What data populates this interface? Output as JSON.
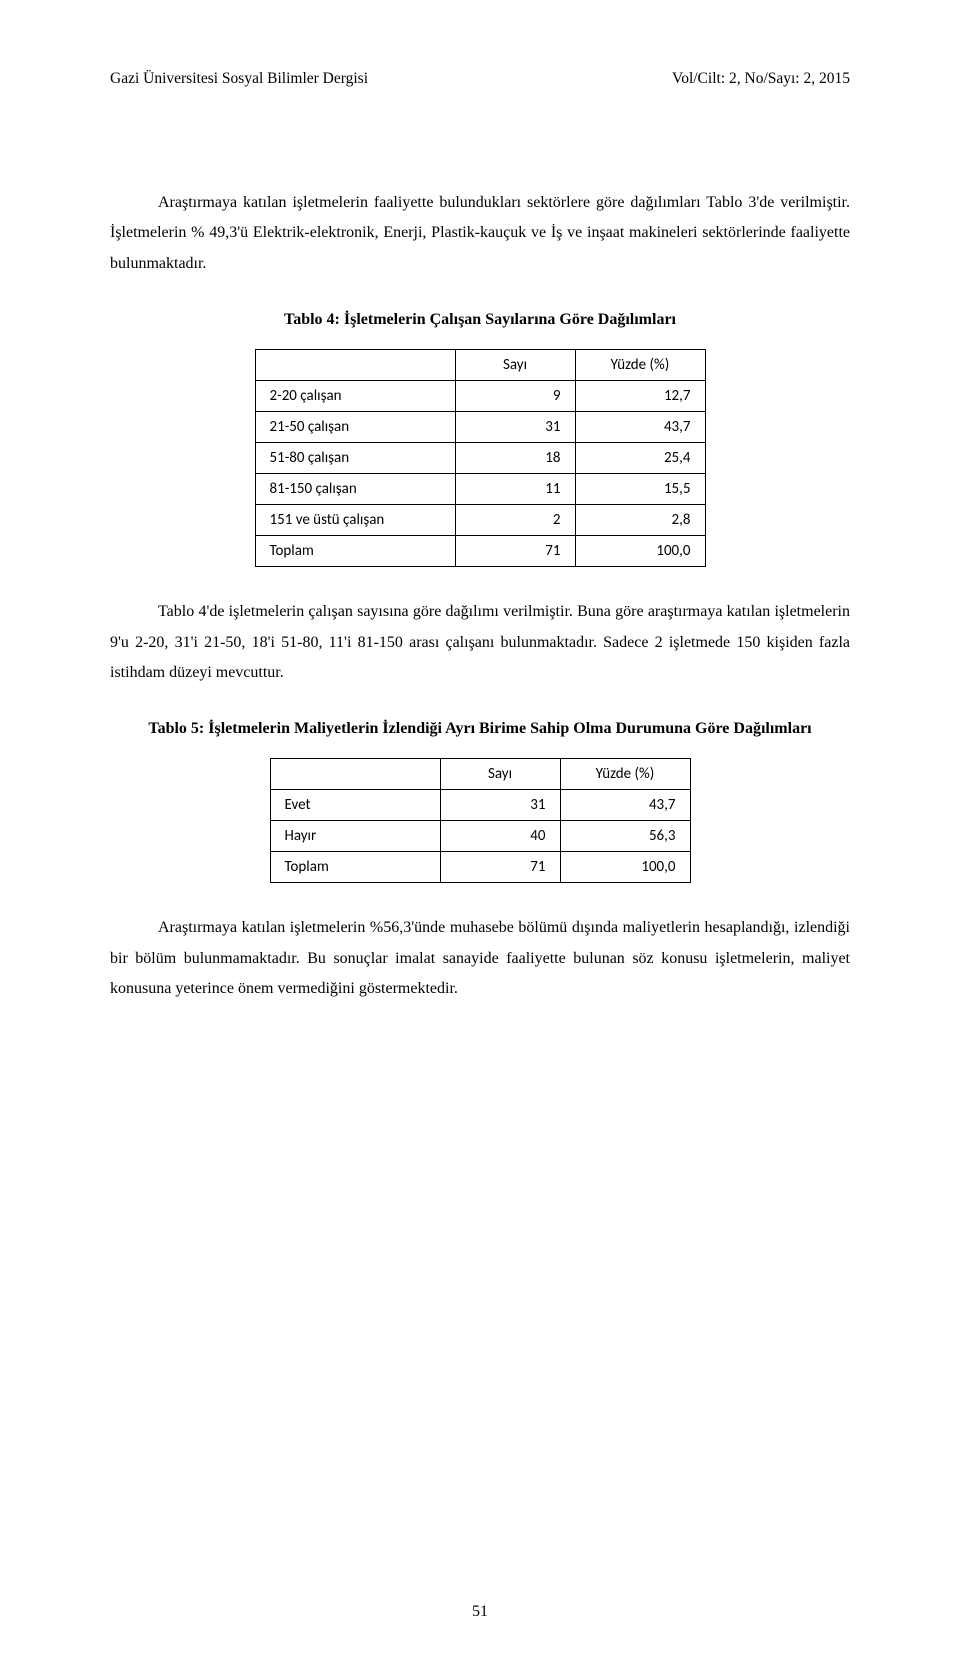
{
  "header": {
    "journal": "Gazi Üniversitesi Sosyal Bilimler Dergisi",
    "issue": "Vol/Cilt: 2, No/Sayı: 2, 2015"
  },
  "para1": "Araştırmaya katılan işletmelerin faaliyette bulundukları sektörlere göre dağılımları Tablo 3'de verilmiştir. İşletmelerin % 49,3'ü Elektrik-elektronik, Enerji, Plastik-kauçuk ve İş ve inşaat makineleri sektörlerinde faaliyette bulunmaktadır.",
  "table4": {
    "title": "Tablo 4: İşletmelerin Çalışan Sayılarına Göre Dağılımları",
    "col_label_width": 200,
    "col_num_width": 120,
    "col_pct_width": 130,
    "header_count": "Sayı",
    "header_pct": "Yüzde (%)",
    "rows": [
      {
        "label": "2-20 çalışan",
        "count": "9",
        "pct": "12,7"
      },
      {
        "label": "21-50 çalışan",
        "count": "31",
        "pct": "43,7"
      },
      {
        "label": "51-80 çalışan",
        "count": "18",
        "pct": "25,4"
      },
      {
        "label": "81-150 çalışan",
        "count": "11",
        "pct": "15,5"
      },
      {
        "label": "151 ve üstü çalışan",
        "count": "2",
        "pct": "2,8"
      },
      {
        "label": "Toplam",
        "count": "71",
        "pct": "100,0"
      }
    ]
  },
  "para2": "Tablo 4'de işletmelerin çalışan sayısına göre dağılımı verilmiştir. Buna göre araştırmaya katılan işletmelerin 9'u 2-20, 31'i 21-50, 18'i 51-80, 11'i 81-150 arası çalışanı bulunmaktadır. Sadece 2 işletmede 150 kişiden fazla istihdam düzeyi mevcuttur.",
  "table5": {
    "title": "Tablo 5: İşletmelerin Maliyetlerin İzlendiği Ayrı Birime Sahip Olma Durumuna Göre Dağılımları",
    "col_label_width": 170,
    "col_num_width": 120,
    "col_pct_width": 130,
    "header_count": "Sayı",
    "header_pct": "Yüzde (%)",
    "rows": [
      {
        "label": "Evet",
        "count": "31",
        "pct": "43,7"
      },
      {
        "label": "Hayır",
        "count": "40",
        "pct": "56,3"
      },
      {
        "label": "Toplam",
        "count": "71",
        "pct": "100,0"
      }
    ]
  },
  "para3": "Araştırmaya katılan işletmelerin %56,3'ünde muhasebe bölümü dışında maliyetlerin hesaplandığı, izlendiği bir bölüm bulunmamaktadır. Bu sonuçlar imalat sanayide faaliyette bulunan söz konusu işletmelerin, maliyet konusuna yeterince önem vermediğini göstermektedir.",
  "page_number": "51"
}
